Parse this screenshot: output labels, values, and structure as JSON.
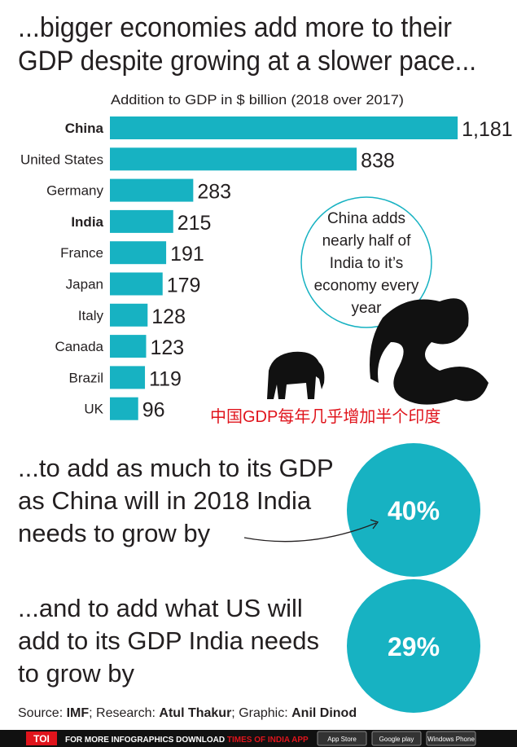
{
  "chart_data": {
    "type": "bar",
    "orientation": "horizontal",
    "title": [
      "...bigger economies add more to their",
      "GDP despite growing at a slower pace..."
    ],
    "subtitle": "Addition to GDP in $ billion (2018 over 2017)",
    "categories": [
      "China",
      "United States",
      "Germany",
      "India",
      "France",
      "Japan",
      "Italy",
      "Canada",
      "Brazil",
      "UK"
    ],
    "values": [
      1181,
      838,
      283,
      215,
      191,
      179,
      128,
      123,
      119,
      96
    ],
    "value_labels": [
      "1,181",
      "838",
      "283",
      "215",
      "191",
      "179",
      "128",
      "123",
      "119",
      "96"
    ],
    "bold_categories": [
      0,
      3
    ],
    "color": "#17b2c2",
    "xlim": [
      0,
      1200
    ],
    "annotation": [
      "China adds",
      "nearly half of",
      "India to it’s",
      "economy every",
      "year"
    ],
    "annotation_cn": "中国GDP每年几乎增加半个印度"
  },
  "statements": [
    {
      "lines": [
        "...to add as much to its GDP",
        "as China will in 2018 India",
        "needs to grow by"
      ],
      "value": "40%"
    },
    {
      "lines": [
        "...and to add what US will",
        "add to its GDP India needs",
        "to grow by"
      ],
      "value": "29%"
    }
  ],
  "source": {
    "label1": "Source: ",
    "source": "IMF",
    "label2": "; Research: ",
    "research": "Atul Thakur",
    "label3": "; Graphic: ",
    "graphic": "Anil Dinod"
  },
  "footer": {
    "logo": "TOI",
    "text": "FOR MORE  INFOGRAPHICS DOWNLOAD",
    "app": "TIMES OF INDIA  APP",
    "badges": [
      "App Store",
      "Google play",
      "Windows Phone"
    ]
  }
}
